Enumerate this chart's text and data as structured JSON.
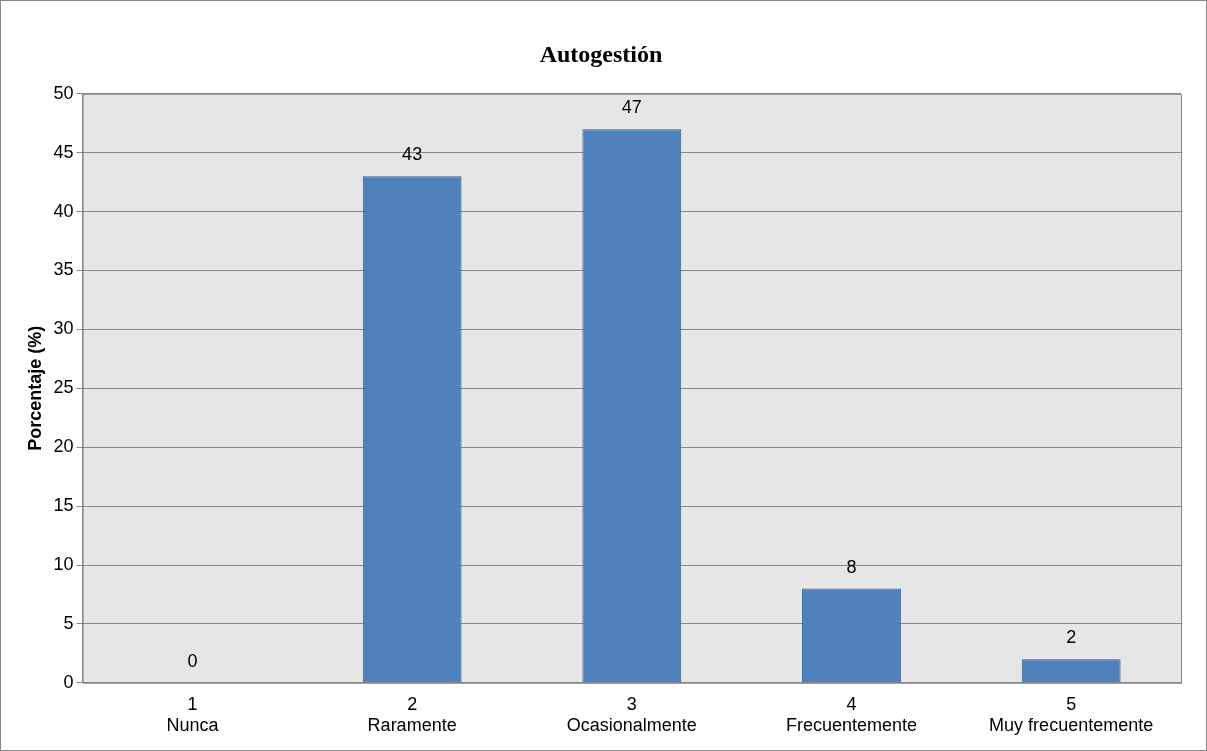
{
  "chart_data": {
    "type": "bar",
    "title": "Autogestión",
    "ylabel": "Porcentaje (%)",
    "categories": [
      "1\nNunca",
      "2\nRaramente",
      "3\nOcasionalmente",
      "4\nFrecuentemente",
      "5\nMuy frecuentemente"
    ],
    "values": [
      0,
      43,
      47,
      8,
      2
    ],
    "color": "#4f81bd",
    "ylim": [
      0,
      50
    ],
    "yticks": [
      0,
      5,
      10,
      15,
      20,
      25,
      30,
      35,
      40,
      45,
      50
    ],
    "grid": "y",
    "data_labels": true
  }
}
